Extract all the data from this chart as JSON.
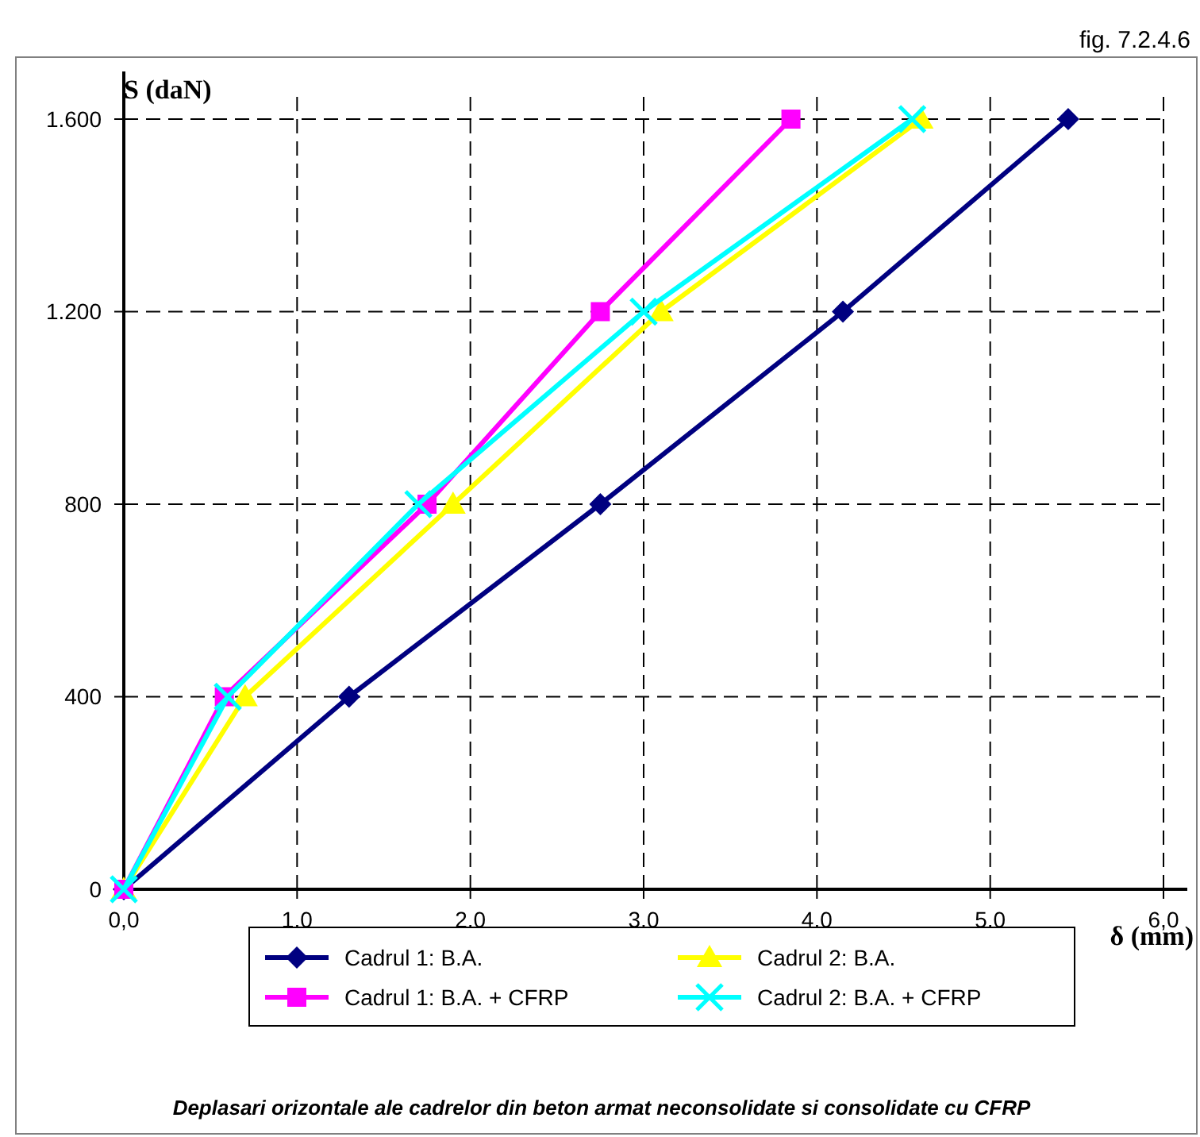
{
  "chart_data": {
    "type": "line",
    "ylabel": "S (daN)",
    "xlabel": "δ (mm)",
    "annotations": [
      "fig. 7.2.4.6",
      "Deplasari orizontale ale cadrelor din beton armat neconsolidate si consolidate cu CFRP"
    ],
    "xlim": [
      0,
      6
    ],
    "ylim": [
      0,
      1600
    ],
    "xticks": [
      {
        "value": 0,
        "label": "0,0"
      },
      {
        "value": 1,
        "label": "1,0"
      },
      {
        "value": 2,
        "label": "2,0"
      },
      {
        "value": 3,
        "label": "3,0"
      },
      {
        "value": 4,
        "label": "4,0"
      },
      {
        "value": 5,
        "label": "5,0"
      },
      {
        "value": 6,
        "label": "6,0"
      }
    ],
    "yticks": [
      0,
      400,
      800,
      {
        "value": 1200,
        "label": "1.200"
      },
      {
        "value": 1600,
        "label": "1.600"
      }
    ],
    "grid": true,
    "legend": "bottom",
    "series": [
      {
        "name": "Cadrul 1: B.A.",
        "color": "#000080",
        "marker": "diamond",
        "x": [
          0,
          1.3,
          2.75,
          4.15,
          5.45
        ],
        "values": [
          0,
          400,
          800,
          1200,
          1600
        ]
      },
      {
        "name": "Cadrul 2: B.A.",
        "color": "#ffff00",
        "marker": "triangle",
        "x": [
          0,
          0.7,
          1.9,
          3.1,
          4.6
        ],
        "values": [
          0,
          400,
          800,
          1200,
          1600
        ]
      },
      {
        "name": "Cadrul 1: B.A. + CFRP",
        "color": "#ff00ff",
        "marker": "square",
        "x": [
          0,
          0.58,
          1.75,
          2.75,
          3.85
        ],
        "values": [
          0,
          400,
          800,
          1200,
          1600
        ]
      },
      {
        "name": "Cadrul 2: B.A. + CFRP",
        "color": "#00ffff",
        "marker": "cross",
        "x": [
          0,
          0.6,
          1.7,
          3.0,
          4.55
        ],
        "values": [
          0,
          400,
          800,
          1200,
          1600
        ]
      }
    ]
  }
}
